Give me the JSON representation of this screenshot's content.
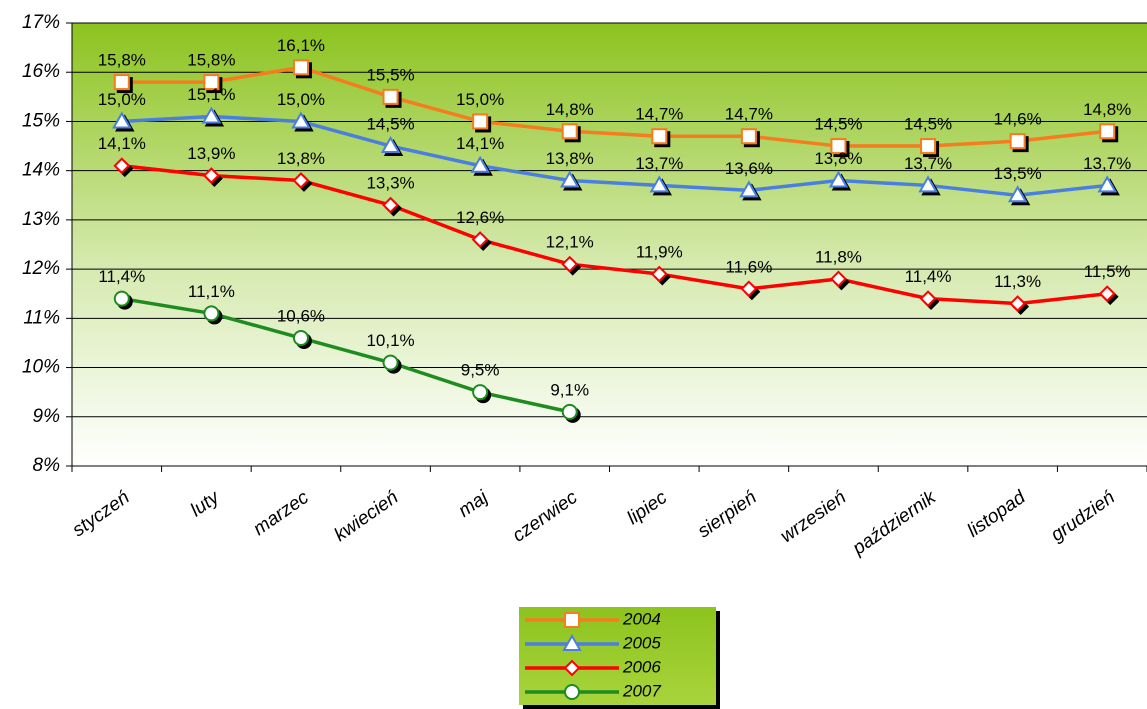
{
  "chart_data": {
    "type": "line",
    "categories": [
      "styczeń",
      "luty",
      "marzec",
      "kwiecień",
      "maj",
      "czerwiec",
      "lipiec",
      "sierpień",
      "wrzesień",
      "październik",
      "listopad",
      "grudzień"
    ],
    "ylim": [
      8,
      17
    ],
    "yticks": [
      {
        "value": 8,
        "label": "8%"
      },
      {
        "value": 9,
        "label": "9%"
      },
      {
        "value": 10,
        "label": "10%"
      },
      {
        "value": 11,
        "label": "11%"
      },
      {
        "value": 12,
        "label": "12%"
      },
      {
        "value": 13,
        "label": "13%"
      },
      {
        "value": 14,
        "label": "14%"
      },
      {
        "value": 15,
        "label": "15%"
      },
      {
        "value": 16,
        "label": "16%"
      },
      {
        "value": 17,
        "label": "17%"
      }
    ],
    "grid": true,
    "legend": "bottom",
    "series": [
      {
        "name": "2004",
        "color": "#f57c1f",
        "marker": "square",
        "values": [
          15.8,
          15.8,
          16.1,
          15.5,
          15.0,
          14.8,
          14.7,
          14.7,
          14.5,
          14.5,
          14.6,
          14.8
        ],
        "value_labels": [
          "15,8%",
          "15,8%",
          "16,1%",
          "15,5%",
          "15,0%",
          "14,8%",
          "14,7%",
          "14,7%",
          "14,5%",
          "14,5%",
          "14,6%",
          "14,8%"
        ]
      },
      {
        "name": "2005",
        "color": "#4a7fe0",
        "marker": "triangle",
        "values": [
          15.0,
          15.1,
          15.0,
          14.5,
          14.1,
          13.8,
          13.7,
          13.6,
          13.8,
          13.7,
          13.5,
          13.7
        ],
        "value_labels": [
          "15,0%",
          "15,1%",
          "15,0%",
          "14,5%",
          "14,1%",
          "13,8%",
          "13,7%",
          "13,6%",
          "13,8%",
          "13,7%",
          "13,5%",
          "13,7%"
        ]
      },
      {
        "name": "2006",
        "color": "#ff0000",
        "marker": "diamond",
        "values": [
          14.1,
          13.9,
          13.8,
          13.3,
          12.6,
          12.1,
          11.9,
          11.6,
          11.8,
          11.4,
          11.3,
          11.5
        ],
        "value_labels": [
          "14,1%",
          "13,9%",
          "13,8%",
          "13,3%",
          "12,6%",
          "12,1%",
          "11,9%",
          "11,6%",
          "11,8%",
          "11,4%",
          "11,3%",
          "11,5%"
        ]
      },
      {
        "name": "2007",
        "color": "#1e8c1e",
        "marker": "circle",
        "values": [
          11.4,
          11.1,
          10.6,
          10.1,
          9.5,
          9.1,
          null,
          null,
          null,
          null,
          null,
          null
        ],
        "value_labels": [
          "11,4%",
          "11,1%",
          "10,6%",
          "10,1%",
          "9,5%",
          "9,1%",
          null,
          null,
          null,
          null,
          null,
          null
        ]
      }
    ]
  }
}
